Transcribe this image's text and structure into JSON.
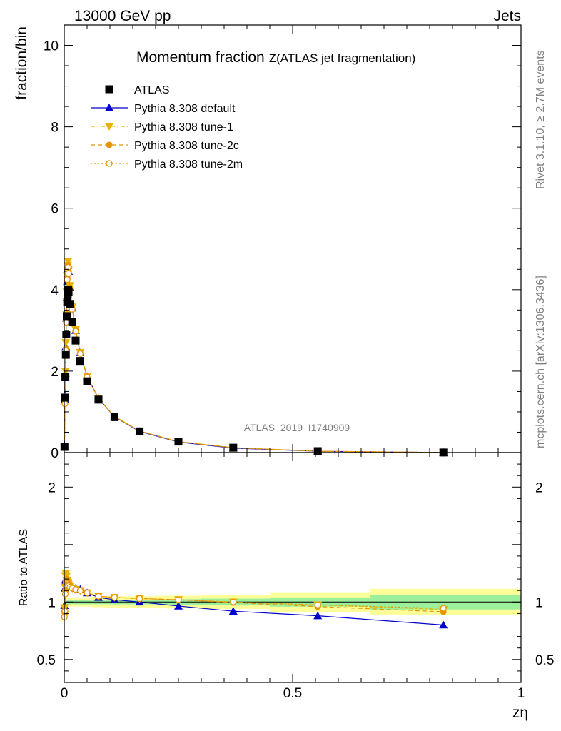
{
  "header": {
    "left": "13000 GeV pp",
    "right": "Jets"
  },
  "side": {
    "rivet": "Rivet 3.1.10, ≥ 2.7M events",
    "mcplots": "mcplots.cern.ch [arXiv:1306.3436]"
  },
  "chart_data": [
    {
      "type": "line",
      "panel": "main",
      "title_main": "Momentum fraction z",
      "title_sub": "(ATLAS jet fragmentation)",
      "watermark": "ATLAS_2019_I1740909",
      "ylabel": "fraction/bin",
      "xlim": [
        0,
        1
      ],
      "ylim": [
        0,
        10.5
      ],
      "grid": false,
      "legend_position": "top-left",
      "x_ticks": [
        "0",
        "0.5",
        "1"
      ],
      "y_ticks": [
        "0",
        "2",
        "4",
        "6",
        "8",
        "10"
      ],
      "series": [
        {
          "name": "ATLAS",
          "color": "#000000",
          "marker": "square",
          "x": [
            0.0005,
            0.0015,
            0.0025,
            0.0035,
            0.0045,
            0.0055,
            0.0065,
            0.0075,
            0.0085,
            0.0095,
            0.0125,
            0.0175,
            0.025,
            0.035,
            0.05,
            0.075,
            0.11,
            0.165,
            0.25,
            0.37,
            0.555,
            0.83
          ],
          "y": [
            0.14,
            1.35,
            1.85,
            2.4,
            2.9,
            3.35,
            3.7,
            3.9,
            4.0,
            3.95,
            3.65,
            3.2,
            2.75,
            2.25,
            1.75,
            1.3,
            0.87,
            0.52,
            0.27,
            0.12,
            0.035,
            0.002
          ]
        },
        {
          "name": "Pythia 8.308 default",
          "color": "#0000cc",
          "marker": "triangle-up",
          "line": "solid",
          "x": [
            0.0005,
            0.0015,
            0.0025,
            0.0035,
            0.0045,
            0.0055,
            0.0065,
            0.0075,
            0.0085,
            0.0095,
            0.0125,
            0.0175,
            0.025,
            0.035,
            0.05,
            0.075,
            0.11,
            0.165,
            0.25,
            0.37,
            0.555,
            0.83
          ],
          "y": [
            0.14,
            1.3,
            1.95,
            2.6,
            3.3,
            3.8,
            4.2,
            4.5,
            4.6,
            4.45,
            4.05,
            3.55,
            3.0,
            2.45,
            1.87,
            1.33,
            0.88,
            0.52,
            0.26,
            0.11,
            0.032,
            0.0016
          ]
        },
        {
          "name": "Pythia 8.308 tune-1",
          "color": "#e8b400",
          "marker": "triangle-down",
          "line": "dashdot",
          "x": [
            0.0005,
            0.0015,
            0.0025,
            0.0035,
            0.0045,
            0.0055,
            0.0065,
            0.0075,
            0.0085,
            0.0095,
            0.0125,
            0.0175,
            0.025,
            0.035,
            0.05,
            0.075,
            0.11,
            0.165,
            0.25,
            0.37,
            0.555,
            0.83
          ],
          "y": [
            0.13,
            1.25,
            2.0,
            2.7,
            3.4,
            3.95,
            4.35,
            4.6,
            4.7,
            4.5,
            4.1,
            3.58,
            3.02,
            2.46,
            1.87,
            1.33,
            0.89,
            0.53,
            0.27,
            0.12,
            0.034,
            0.0019
          ]
        },
        {
          "name": "Pythia 8.308 tune-2c",
          "color": "#e69500",
          "marker": "circle",
          "line": "dashed",
          "x": [
            0.0005,
            0.0015,
            0.0025,
            0.0035,
            0.0045,
            0.0055,
            0.0065,
            0.0075,
            0.0085,
            0.0095,
            0.0125,
            0.0175,
            0.025,
            0.035,
            0.05,
            0.075,
            0.11,
            0.165,
            0.25,
            0.37,
            0.555,
            0.83
          ],
          "y": [
            0.13,
            1.2,
            1.85,
            2.55,
            3.25,
            3.85,
            4.3,
            4.55,
            4.6,
            4.45,
            4.05,
            3.55,
            3.0,
            2.44,
            1.86,
            1.33,
            0.89,
            0.53,
            0.27,
            0.12,
            0.034,
            0.0019
          ]
        },
        {
          "name": "Pythia 8.308 tune-2m",
          "color": "#e69500",
          "marker": "open-circle",
          "line": "dotted",
          "x": [
            0.0005,
            0.0015,
            0.0025,
            0.0035,
            0.0045,
            0.0055,
            0.0065,
            0.0075,
            0.0085,
            0.0095,
            0.0125,
            0.0175,
            0.025,
            0.035,
            0.05,
            0.075,
            0.11,
            0.165,
            0.25,
            0.37,
            0.555,
            0.83
          ],
          "y": [
            0.12,
            1.2,
            1.85,
            2.5,
            3.2,
            3.8,
            4.25,
            4.5,
            4.55,
            4.4,
            4.02,
            3.52,
            2.98,
            2.43,
            1.85,
            1.32,
            0.89,
            0.53,
            0.27,
            0.12,
            0.034,
            0.0019
          ]
        }
      ]
    },
    {
      "type": "line",
      "panel": "ratio",
      "ylabel": "Ratio to ATLAS",
      "xlabel": "zη",
      "xlim": [
        0,
        1
      ],
      "ylim": [
        0.3,
        2.3
      ],
      "x_ticks": [
        "0",
        "0.5",
        "1"
      ],
      "y_ticks": [
        "0.5",
        "1",
        "2"
      ],
      "bands": {
        "x_edges": [
          0,
          0.01,
          0.02,
          0.03,
          0.04,
          0.06,
          0.09,
          0.13,
          0.2,
          0.3,
          0.45,
          0.67,
          1.0
        ],
        "stat": [
          0.02,
          0.02,
          0.02,
          0.02,
          0.02,
          0.02,
          0.02,
          0.02,
          0.025,
          0.03,
          0.04,
          0.065
        ],
        "total": [
          0.04,
          0.04,
          0.04,
          0.04,
          0.04,
          0.045,
          0.05,
          0.05,
          0.055,
          0.06,
          0.085,
          0.115
        ],
        "stat_color": "#9cf09c",
        "total_color": "#ffff99"
      },
      "series": [
        {
          "name": "Pythia 8.308 default",
          "color": "#0000cc",
          "marker": "triangle-up",
          "line": "solid",
          "x": [
            0.0005,
            0.0015,
            0.0025,
            0.0035,
            0.0045,
            0.0055,
            0.0065,
            0.0075,
            0.0085,
            0.0095,
            0.0125,
            0.0175,
            0.025,
            0.035,
            0.05,
            0.075,
            0.11,
            0.165,
            0.25,
            0.37,
            0.555,
            0.83
          ],
          "y": [
            0.97,
            1.12,
            1.18,
            1.2,
            1.2,
            1.19,
            1.18,
            1.17,
            1.16,
            1.15,
            1.14,
            1.13,
            1.12,
            1.11,
            1.08,
            1.04,
            1.02,
            1.0,
            0.965,
            0.92,
            0.88,
            0.8
          ]
        },
        {
          "name": "Pythia 8.308 tune-1",
          "color": "#e8b400",
          "marker": "triangle-down",
          "line": "dashdot",
          "x": [
            0.0005,
            0.0015,
            0.0025,
            0.0035,
            0.0045,
            0.0055,
            0.0065,
            0.0075,
            0.0085,
            0.0095,
            0.0125,
            0.0175,
            0.025,
            0.035,
            0.05,
            0.075,
            0.11,
            0.165,
            0.25,
            0.37,
            0.555,
            0.83
          ],
          "y": [
            0.95,
            1.13,
            1.23,
            1.25,
            1.22,
            1.19,
            1.18,
            1.17,
            1.16,
            1.15,
            1.14,
            1.12,
            1.11,
            1.1,
            1.08,
            1.05,
            1.04,
            1.03,
            1.02,
            1.0,
            0.975,
            0.935
          ]
        },
        {
          "name": "Pythia 8.308 tune-2c",
          "color": "#e69500",
          "marker": "circle",
          "line": "dashed",
          "x": [
            0.0005,
            0.0015,
            0.0025,
            0.0035,
            0.0045,
            0.0055,
            0.0065,
            0.0075,
            0.0085,
            0.0095,
            0.0125,
            0.0175,
            0.025,
            0.035,
            0.05,
            0.075,
            0.11,
            0.165,
            0.25,
            0.37,
            0.555,
            0.83
          ],
          "y": [
            0.92,
            0.9,
            1.1,
            1.18,
            1.2,
            1.19,
            1.18,
            1.17,
            1.16,
            1.15,
            1.14,
            1.12,
            1.11,
            1.1,
            1.08,
            1.05,
            1.04,
            1.03,
            1.02,
            0.995,
            0.96,
            0.915
          ]
        },
        {
          "name": "Pythia 8.308 tune-2m",
          "color": "#e69500",
          "marker": "open-circle",
          "line": "dotted",
          "x": [
            0.0005,
            0.0015,
            0.0025,
            0.0035,
            0.0045,
            0.0055,
            0.0065,
            0.0075,
            0.0085,
            0.0095,
            0.0125,
            0.0175,
            0.025,
            0.035,
            0.05,
            0.075,
            0.11,
            0.165,
            0.25,
            0.37,
            0.555,
            0.83
          ],
          "y": [
            0.87,
            0.92,
            1.07,
            1.15,
            1.17,
            1.17,
            1.17,
            1.16,
            1.15,
            1.14,
            1.13,
            1.12,
            1.11,
            1.1,
            1.08,
            1.05,
            1.04,
            1.03,
            1.02,
            1.0,
            0.975,
            0.945
          ]
        }
      ]
    }
  ]
}
